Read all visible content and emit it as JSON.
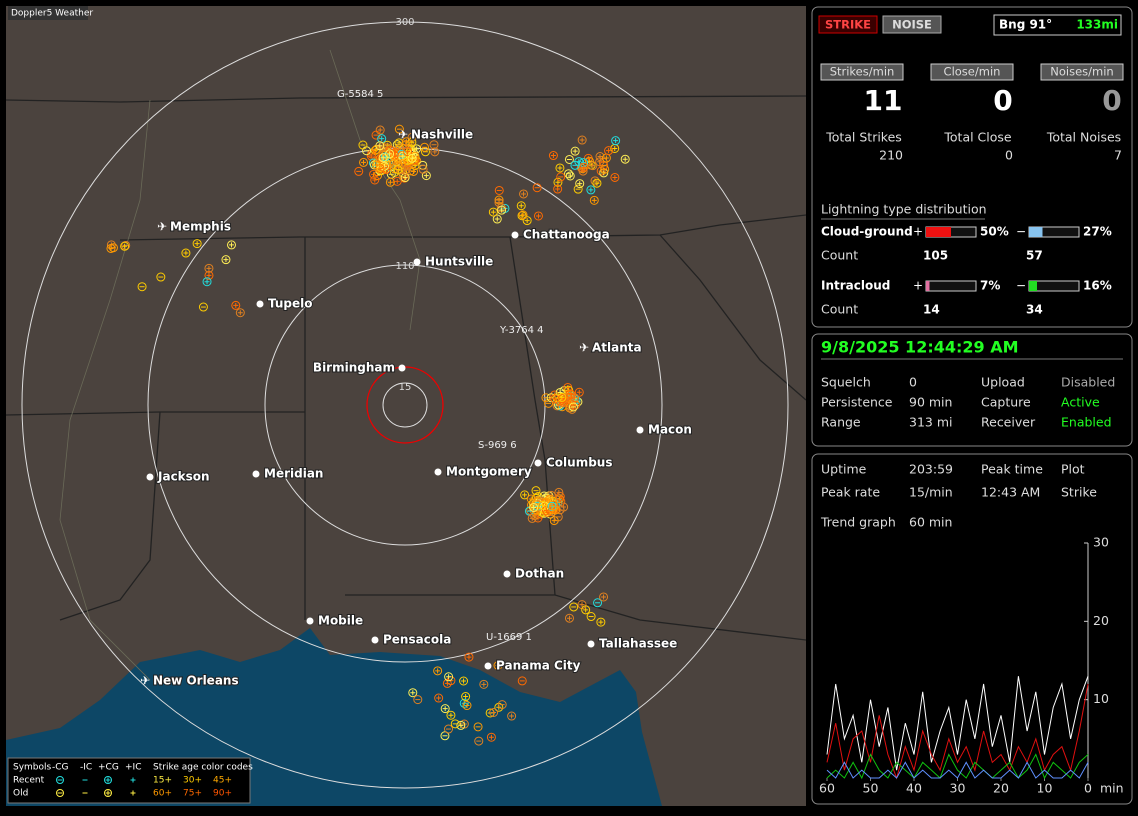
{
  "map": {
    "badge": "Doppler5 Weather",
    "ring_labels": [
      300,
      110,
      15
    ],
    "cities": [
      {
        "name": "Nashville",
        "airport": true
      },
      {
        "name": "Memphis",
        "airport": true
      },
      {
        "name": "Chattanooga",
        "airport": false
      },
      {
        "name": "Huntsville",
        "airport": false
      },
      {
        "name": "Tupelo",
        "airport": false
      },
      {
        "name": "Atlanta",
        "airport": true
      },
      {
        "name": "Birmingham",
        "airport": false
      },
      {
        "name": "Macon",
        "airport": false
      },
      {
        "name": "Columbus",
        "airport": false
      },
      {
        "name": "Montgomery",
        "airport": false
      },
      {
        "name": "Meridian",
        "airport": false
      },
      {
        "name": "Jackson",
        "airport": false
      },
      {
        "name": "Dothan",
        "airport": false
      },
      {
        "name": "Mobile",
        "airport": false
      },
      {
        "name": "Pensacola",
        "airport": false
      },
      {
        "name": "Tallahassee",
        "airport": false
      },
      {
        "name": "Panama City",
        "airport": false
      },
      {
        "name": "New Orleans",
        "airport": true
      }
    ],
    "storm_labels": [
      "G-5584 5",
      "Y-3764 4",
      "S-969 6",
      "U-1669 1"
    ],
    "legend": {
      "headers": [
        "Symbols",
        "-CG",
        "-IC",
        "+CG",
        "+IC",
        "Strike age color codes"
      ],
      "rows": [
        {
          "name": "Recent",
          "ages": [
            "15+",
            "30+",
            "45+"
          ]
        },
        {
          "name": "Old",
          "ages": [
            "60+",
            "75+",
            "90+"
          ]
        }
      ]
    }
  },
  "panel": {
    "mode_buttons": [
      "STRIKE",
      "NOISE"
    ],
    "bearing": "Bng 91°",
    "distance": "133mi",
    "rate_buttons": [
      "Strikes/min",
      "Close/min",
      "Noises/min"
    ],
    "rates": [
      11,
      0,
      0
    ],
    "total_labels": [
      "Total Strikes",
      "Total Close",
      "Total Noises"
    ],
    "totals": [
      210,
      0,
      7
    ],
    "distribution": {
      "title": "Lightning type distribution",
      "rows": [
        {
          "name": "Cloud-ground",
          "count_label": "Count",
          "plus_sign": "+",
          "minus_sign": "−",
          "plus_percent": {
            "value": 50,
            "label": "50%"
          },
          "minus_percent": {
            "value": 27,
            "label": "27%"
          },
          "plus_count": 105,
          "minus_count": 57
        },
        {
          "name": "Intracloud",
          "count_label": "Count",
          "plus_sign": "+",
          "minus_sign": "−",
          "plus_percent": {
            "value": 7,
            "label": "7%"
          },
          "minus_percent": {
            "value": 16,
            "label": "16%"
          },
          "plus_count": 14,
          "minus_count": 34
        }
      ]
    },
    "status": {
      "datetime": "9/8/2025 12:44:29 AM",
      "rows": [
        [
          "Squelch",
          "0",
          "Upload",
          "Disabled"
        ],
        [
          "Persistence",
          "90 min",
          "Capture",
          "Active"
        ],
        [
          "Range",
          "313 mi",
          "Receiver",
          "Enabled"
        ]
      ]
    },
    "stats": {
      "rows": [
        [
          "Uptime",
          "203:59",
          "Peak time",
          "Plot"
        ],
        [
          "Peak rate",
          "15/min",
          "12:43 AM",
          "Strike"
        ]
      ],
      "trend_label": "Trend graph",
      "trend_window": "60 min"
    }
  },
  "chart_data": {
    "type": "line",
    "x_label": "min",
    "x": [
      60,
      58,
      56,
      54,
      52,
      50,
      48,
      46,
      44,
      42,
      40,
      38,
      36,
      34,
      32,
      30,
      28,
      26,
      24,
      22,
      20,
      18,
      16,
      14,
      12,
      10,
      8,
      6,
      4,
      2,
      0
    ],
    "xlim": [
      60,
      0
    ],
    "xticks": [
      60,
      50,
      40,
      30,
      20,
      10,
      0
    ],
    "ylim": [
      0,
      30
    ],
    "yticks": [
      10,
      20,
      30
    ],
    "series": [
      {
        "name": "Total",
        "color": "#ffffff",
        "values": [
          3,
          12,
          5,
          8,
          2,
          10,
          4,
          9,
          1,
          7,
          3,
          11,
          2,
          6,
          9,
          3,
          10,
          5,
          12,
          4,
          8,
          2,
          13,
          6,
          11,
          3,
          9,
          12,
          5,
          10,
          13
        ]
      },
      {
        "name": "CG",
        "color": "#e01010",
        "values": [
          2,
          7,
          1,
          5,
          6,
          2,
          8,
          3,
          0,
          4,
          1,
          6,
          3,
          1,
          5,
          2,
          4,
          1,
          6,
          2,
          3,
          1,
          4,
          2,
          5,
          1,
          3,
          4,
          1,
          6,
          12
        ]
      },
      {
        "name": "IC",
        "color": "#10c010",
        "values": [
          0,
          1,
          0,
          2,
          0,
          3,
          1,
          0,
          2,
          1,
          0,
          2,
          1,
          0,
          3,
          1,
          0,
          2,
          1,
          0,
          1,
          2,
          0,
          1,
          3,
          0,
          2,
          1,
          0,
          2,
          3
        ]
      },
      {
        "name": "Noise",
        "color": "#6090ff",
        "values": [
          1,
          0,
          2,
          0,
          1,
          0,
          0,
          1,
          0,
          2,
          0,
          1,
          0,
          0,
          1,
          0,
          2,
          0,
          1,
          0,
          0,
          1,
          0,
          2,
          0,
          1,
          0,
          0,
          1,
          0,
          2
        ]
      }
    ]
  }
}
